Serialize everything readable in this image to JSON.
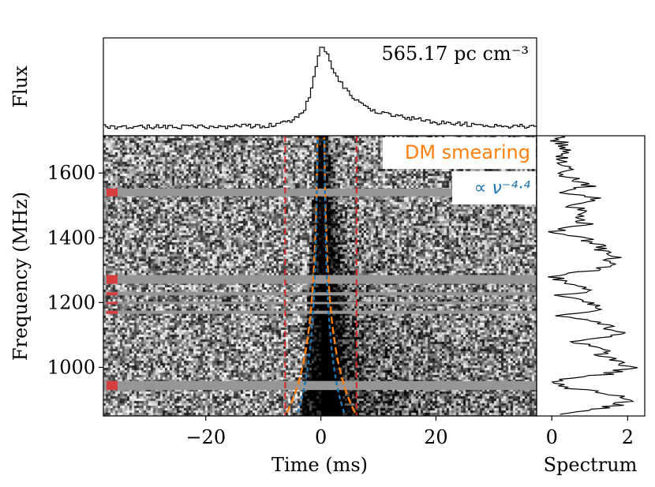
{
  "chart_data": [
    {
      "type": "line",
      "panel": "pulse-profile",
      "ylabel": "Flux",
      "annotation": "565.17 pc cm⁻³",
      "x_units": "ms",
      "xlim": [
        -37.8,
        37.5
      ],
      "x": [
        -37.5,
        -30,
        -20,
        -10,
        -5,
        -3,
        -2,
        -1,
        -0.5,
        0,
        0.5,
        1,
        2,
        3,
        4,
        5,
        6,
        8,
        10,
        15,
        20,
        25,
        30,
        37.5
      ],
      "y": [
        0.05,
        0.05,
        0.05,
        0.06,
        0.12,
        0.25,
        0.45,
        0.75,
        0.9,
        1.0,
        0.96,
        0.88,
        0.72,
        0.6,
        0.5,
        0.42,
        0.35,
        0.27,
        0.22,
        0.15,
        0.1,
        0.08,
        0.06,
        0.05
      ]
    },
    {
      "type": "heatmap",
      "panel": "dynamic-spectrum",
      "xlabel": "Time (ms)",
      "ylabel": "Frequency (MHz)",
      "xlim": [
        -37.8,
        37.5
      ],
      "ylim": [
        850,
        1715
      ],
      "xticks": [
        -20,
        0,
        20
      ],
      "yticks": [
        1000,
        1200,
        1400,
        1600
      ],
      "masked_channels_mhz": [
        [
          1528,
          1552
        ],
        [
          1258,
          1285
        ],
        [
          1222,
          1232
        ],
        [
          1195,
          1202
        ],
        [
          1165,
          1175
        ],
        [
          930,
          958
        ]
      ],
      "dm_window_ms": [
        -6.2,
        6.2
      ],
      "legend": [
        {
          "label": "DM smearing",
          "color": "#ff7f0e"
        },
        {
          "label": "∝ ν⁻⁴·⁴",
          "color": "#1f77b4"
        }
      ]
    },
    {
      "type": "line",
      "panel": "spectrum",
      "xlabel": "Spectrum",
      "xticks": [
        0,
        2
      ],
      "xlim": [
        -0.4,
        2.45
      ],
      "freq": [
        860,
        880,
        900,
        920,
        940,
        960,
        980,
        1000,
        1020,
        1040,
        1060,
        1080,
        1100,
        1120,
        1140,
        1160,
        1180,
        1200,
        1220,
        1240,
        1260,
        1280,
        1300,
        1320,
        1340,
        1360,
        1380,
        1400,
        1420,
        1440,
        1460,
        1480,
        1500,
        1520,
        1540,
        1560,
        1580,
        1600,
        1620,
        1640,
        1660,
        1680,
        1700,
        1710
      ],
      "spectrum": [
        0.4,
        1.6,
        2.0,
        1.5,
        0.2,
        0.1,
        1.5,
        2.1,
        1.7,
        1.3,
        1.4,
        0.4,
        1.8,
        1.6,
        1.2,
        0.2,
        1.4,
        1.0,
        0.1,
        1.2,
        0.3,
        0.1,
        1.1,
        1.5,
        1.6,
        1.3,
        1.2,
        0.8,
        0.1,
        0.9,
        0.6,
        1.0,
        0.4,
        1.2,
        0.3,
        1.0,
        0.6,
        0.3,
        0.5,
        0.2,
        0.4,
        0.3,
        0.2,
        0.4
      ]
    }
  ]
}
